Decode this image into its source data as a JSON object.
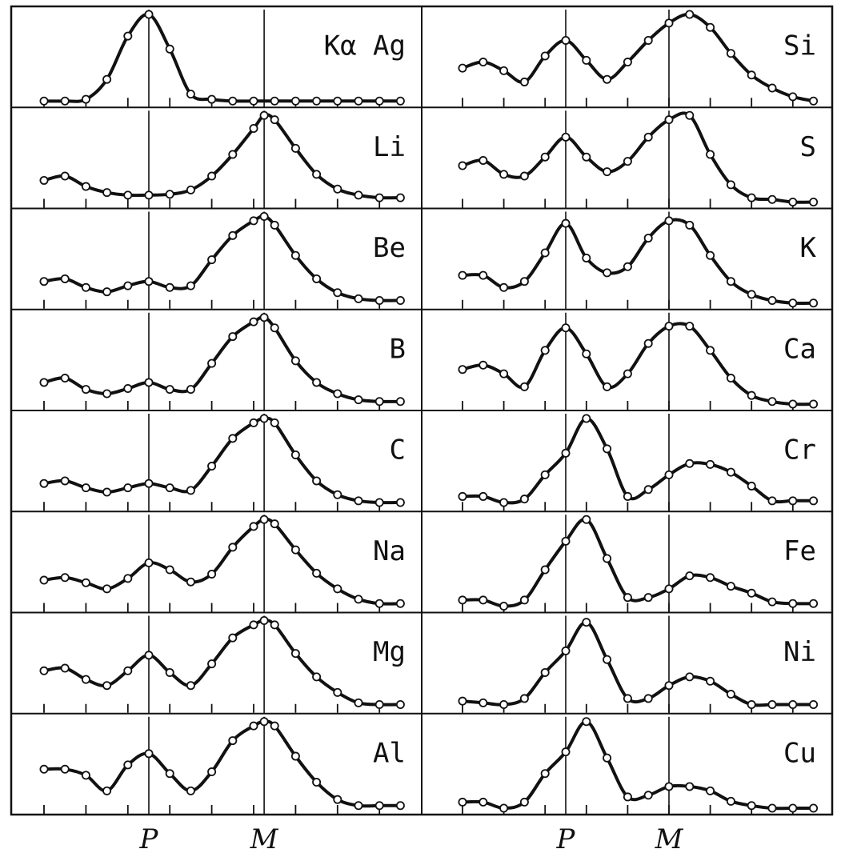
{
  "chart_data": {
    "type": "line",
    "grid": false,
    "x_markers": [
      "P",
      "M"
    ],
    "y_range": [
      0,
      1
    ],
    "columns": [
      {
        "x_range": [
          0,
          17
        ],
        "P_at": 5,
        "M_at": 10.5,
        "panels": [
          {
            "label": "Kα Ag",
            "x": [
              0,
              1,
              2,
              3,
              4,
              5,
              6,
              7,
              8,
              9,
              10,
              11,
              12,
              13,
              14,
              15,
              16,
              17
            ],
            "y": [
              0.0,
              0.0,
              0.02,
              0.25,
              0.75,
              1.0,
              0.6,
              0.08,
              0.02,
              0.0,
              0.0,
              0.0,
              0.0,
              0.0,
              0.0,
              0.0,
              0.0,
              0.0
            ]
          },
          {
            "label": "Li",
            "x": [
              0,
              1,
              2,
              3,
              4,
              5,
              6,
              7,
              8,
              9,
              10,
              10.5,
              11,
              12,
              13,
              14,
              15,
              16,
              17
            ],
            "y": [
              0.25,
              0.3,
              0.18,
              0.11,
              0.08,
              0.08,
              0.09,
              0.14,
              0.3,
              0.55,
              0.85,
              1.0,
              0.95,
              0.62,
              0.32,
              0.15,
              0.08,
              0.05,
              0.05
            ]
          },
          {
            "label": "Be",
            "x": [
              0,
              1,
              2,
              3,
              4,
              5,
              6,
              7,
              8,
              9,
              10,
              10.5,
              11,
              12,
              13,
              14,
              15,
              16,
              17
            ],
            "y": [
              0.25,
              0.28,
              0.18,
              0.13,
              0.2,
              0.25,
              0.18,
              0.2,
              0.5,
              0.78,
              0.95,
              1.0,
              0.9,
              0.55,
              0.28,
              0.12,
              0.05,
              0.03,
              0.03
            ]
          },
          {
            "label": "B",
            "x": [
              0,
              1,
              2,
              3,
              4,
              5,
              6,
              7,
              8,
              9,
              10,
              10.5,
              11,
              12,
              13,
              14,
              15,
              16,
              17
            ],
            "y": [
              0.25,
              0.3,
              0.17,
              0.12,
              0.18,
              0.25,
              0.17,
              0.17,
              0.47,
              0.78,
              0.95,
              1.0,
              0.88,
              0.5,
              0.25,
              0.12,
              0.05,
              0.03,
              0.03
            ]
          },
          {
            "label": "C",
            "x": [
              0,
              1,
              2,
              3,
              4,
              5,
              6,
              7,
              8,
              9,
              10,
              10.5,
              11,
              12,
              13,
              14,
              15,
              16,
              17
            ],
            "y": [
              0.25,
              0.28,
              0.2,
              0.15,
              0.2,
              0.25,
              0.2,
              0.17,
              0.45,
              0.77,
              0.95,
              1.0,
              0.95,
              0.58,
              0.28,
              0.12,
              0.05,
              0.03,
              0.03
            ]
          },
          {
            "label": "Na",
            "x": [
              0,
              1,
              2,
              3,
              4,
              5,
              6,
              7,
              8,
              9,
              10,
              10.5,
              11,
              12,
              13,
              14,
              15,
              16,
              17
            ],
            "y": [
              0.3,
              0.33,
              0.27,
              0.2,
              0.32,
              0.5,
              0.42,
              0.28,
              0.37,
              0.68,
              0.92,
              1.0,
              0.95,
              0.65,
              0.38,
              0.2,
              0.08,
              0.03,
              0.03
            ]
          },
          {
            "label": "Mg",
            "x": [
              0,
              1,
              2,
              3,
              4,
              5,
              6,
              7,
              8,
              9,
              10,
              10.5,
              11,
              12,
              13,
              14,
              15,
              16,
              17
            ],
            "y": [
              0.42,
              0.45,
              0.32,
              0.25,
              0.42,
              0.6,
              0.4,
              0.25,
              0.5,
              0.8,
              0.95,
              1.0,
              0.95,
              0.62,
              0.35,
              0.17,
              0.05,
              0.03,
              0.03
            ]
          },
          {
            "label": "Al",
            "x": [
              0,
              1,
              2,
              3,
              4,
              5,
              6,
              7,
              8,
              9,
              10,
              10.5,
              11,
              12,
              13,
              14,
              15,
              16,
              17
            ],
            "y": [
              0.45,
              0.45,
              0.38,
              0.2,
              0.5,
              0.63,
              0.4,
              0.2,
              0.42,
              0.78,
              0.95,
              1.0,
              0.95,
              0.6,
              0.3,
              0.1,
              0.03,
              0.03,
              0.03
            ]
          }
        ]
      },
      {
        "x_range": [
          0,
          17
        ],
        "P_at": 5,
        "M_at": 10,
        "panels": [
          {
            "label": "Si",
            "x": [
              0,
              1,
              2,
              3,
              4,
              5,
              6,
              7,
              8,
              9,
              10,
              11,
              12,
              13,
              14,
              15,
              16,
              17
            ],
            "y": [
              0.38,
              0.45,
              0.35,
              0.22,
              0.52,
              0.7,
              0.47,
              0.25,
              0.45,
              0.7,
              0.9,
              1.0,
              0.85,
              0.55,
              0.3,
              0.15,
              0.05,
              0.0
            ]
          },
          {
            "label": "S",
            "x": [
              0,
              1,
              2,
              3,
              4,
              5,
              6,
              7,
              8,
              9,
              10,
              11,
              12,
              13,
              14,
              15,
              16,
              17
            ],
            "y": [
              0.42,
              0.48,
              0.32,
              0.3,
              0.52,
              0.75,
              0.52,
              0.35,
              0.47,
              0.75,
              0.95,
              1.0,
              0.55,
              0.2,
              0.05,
              0.03,
              0.0,
              0.0
            ]
          },
          {
            "label": "K",
            "x": [
              0,
              1,
              2,
              3,
              4,
              5,
              6,
              7,
              8,
              9,
              10,
              11,
              12,
              13,
              14,
              15,
              16,
              17
            ],
            "y": [
              0.32,
              0.32,
              0.18,
              0.25,
              0.58,
              0.92,
              0.52,
              0.35,
              0.42,
              0.75,
              0.95,
              0.9,
              0.55,
              0.25,
              0.1,
              0.03,
              0.0,
              0.0
            ]
          },
          {
            "label": "Ca",
            "x": [
              0,
              1,
              2,
              3,
              4,
              5,
              6,
              7,
              8,
              9,
              10,
              11,
              12,
              13,
              14,
              15,
              16,
              17
            ],
            "y": [
              0.4,
              0.45,
              0.35,
              0.2,
              0.62,
              0.88,
              0.58,
              0.2,
              0.35,
              0.7,
              0.9,
              0.9,
              0.62,
              0.3,
              0.1,
              0.03,
              0.0,
              0.0
            ]
          },
          {
            "label": "Cr",
            "x": [
              0,
              1,
              2,
              3,
              4,
              5,
              6,
              7,
              8,
              9,
              10,
              11,
              12,
              13,
              14,
              15,
              16,
              17
            ],
            "y": [
              0.1,
              0.1,
              0.03,
              0.07,
              0.35,
              0.6,
              1.0,
              0.65,
              0.1,
              0.18,
              0.35,
              0.48,
              0.47,
              0.38,
              0.22,
              0.05,
              0.05,
              0.05
            ]
          },
          {
            "label": "Fe",
            "x": [
              0,
              1,
              2,
              3,
              4,
              5,
              6,
              7,
              8,
              9,
              10,
              11,
              12,
              13,
              14,
              15,
              16,
              17
            ],
            "y": [
              0.07,
              0.07,
              0.0,
              0.07,
              0.42,
              0.75,
              1.0,
              0.55,
              0.1,
              0.1,
              0.2,
              0.35,
              0.33,
              0.23,
              0.15,
              0.05,
              0.03,
              0.03
            ]
          },
          {
            "label": "Ni",
            "x": [
              0,
              1,
              2,
              3,
              4,
              5,
              6,
              7,
              8,
              9,
              10,
              11,
              12,
              13,
              14,
              15,
              16,
              17
            ],
            "y": [
              0.07,
              0.05,
              0.03,
              0.1,
              0.4,
              0.65,
              0.98,
              0.55,
              0.1,
              0.1,
              0.25,
              0.35,
              0.3,
              0.15,
              0.03,
              0.03,
              0.03,
              0.03
            ]
          },
          {
            "label": "Cu",
            "x": [
              0,
              1,
              2,
              3,
              4,
              5,
              6,
              7,
              8,
              9,
              10,
              11,
              12,
              13,
              14,
              15,
              16,
              17
            ],
            "y": [
              0.07,
              0.07,
              0.0,
              0.07,
              0.4,
              0.65,
              1.0,
              0.58,
              0.13,
              0.15,
              0.25,
              0.25,
              0.2,
              0.08,
              0.03,
              0.0,
              0.0,
              0.0
            ]
          }
        ]
      }
    ]
  }
}
